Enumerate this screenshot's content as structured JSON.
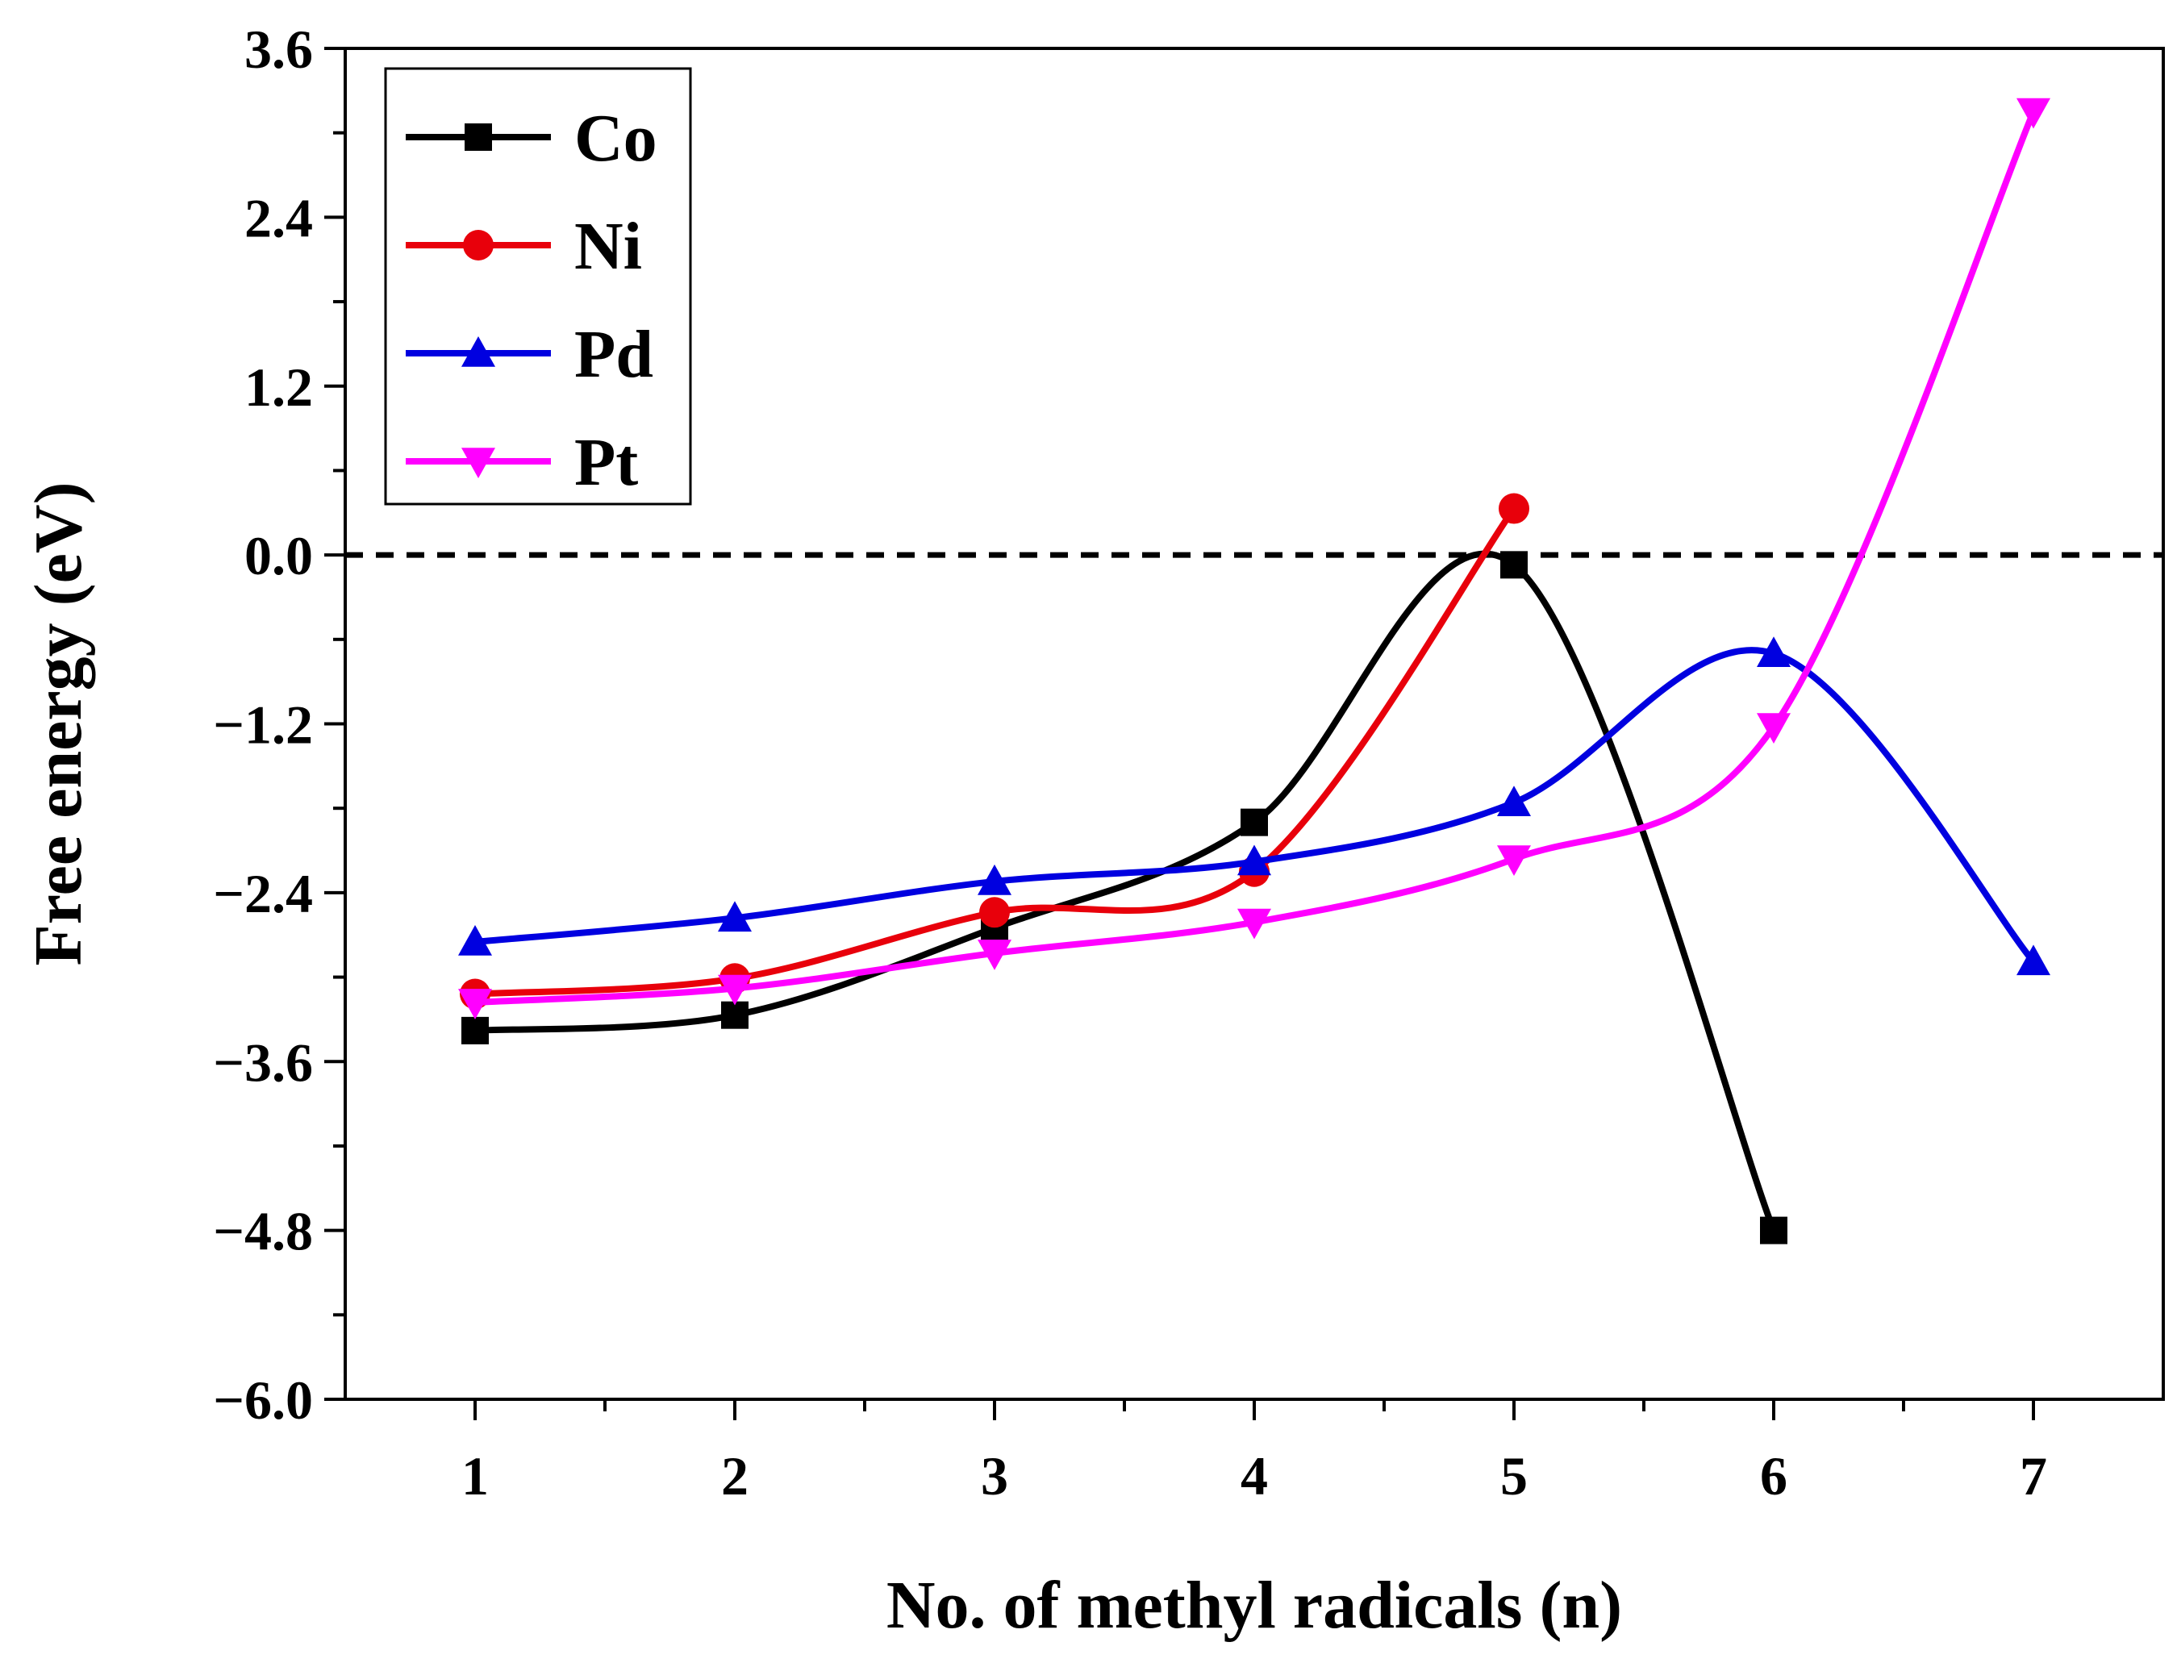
{
  "chart_data": {
    "type": "line",
    "title": "",
    "xlabel": "No. of methyl radicals (n)",
    "ylabel": "Free energy (eV)",
    "xlim": [
      0.5,
      7.5
    ],
    "ylim": [
      -6.0,
      3.6
    ],
    "x_ticks": [
      1,
      2,
      3,
      4,
      5,
      6,
      7
    ],
    "x_tick_labels": [
      "1",
      "2",
      "3",
      "4",
      "5",
      "6",
      "7"
    ],
    "y_ticks": [
      -6.0,
      -4.8,
      -3.6,
      -2.4,
      -1.2,
      0.0,
      1.2,
      2.4,
      3.6
    ],
    "y_tick_labels": [
      "−6.0",
      "−4.8",
      "−3.6",
      "−2.4",
      "−1.2",
      "0.0",
      "1.2",
      "2.4",
      "3.6"
    ],
    "reference_line": {
      "y": 0.0,
      "style": "dashed",
      "color": "#000000"
    },
    "legend_position": "top-left",
    "series": [
      {
        "name": "Co",
        "color": "#000000",
        "marker": "square",
        "x": [
          1,
          2,
          3,
          4,
          5,
          6
        ],
        "values": [
          -3.38,
          -3.27,
          -2.65,
          -1.9,
          -0.07,
          -4.8
        ]
      },
      {
        "name": "Ni",
        "color": "#e8000b",
        "marker": "circle",
        "x": [
          1,
          2,
          3,
          4,
          5
        ],
        "values": [
          -3.12,
          -3.01,
          -2.54,
          -2.25,
          0.33
        ]
      },
      {
        "name": "Pd",
        "color": "#0000e0",
        "marker": "triangle-up",
        "x": [
          1,
          2,
          3,
          4,
          5,
          6,
          7
        ],
        "values": [
          -2.75,
          -2.58,
          -2.32,
          -2.18,
          -1.76,
          -0.7,
          -2.89
        ]
      },
      {
        "name": "Pt",
        "color": "#ff00ff",
        "marker": "triangle-down",
        "x": [
          1,
          2,
          3,
          4,
          5,
          6,
          7
        ],
        "values": [
          -3.18,
          -3.08,
          -2.83,
          -2.61,
          -2.16,
          -1.22,
          3.15
        ]
      }
    ]
  }
}
